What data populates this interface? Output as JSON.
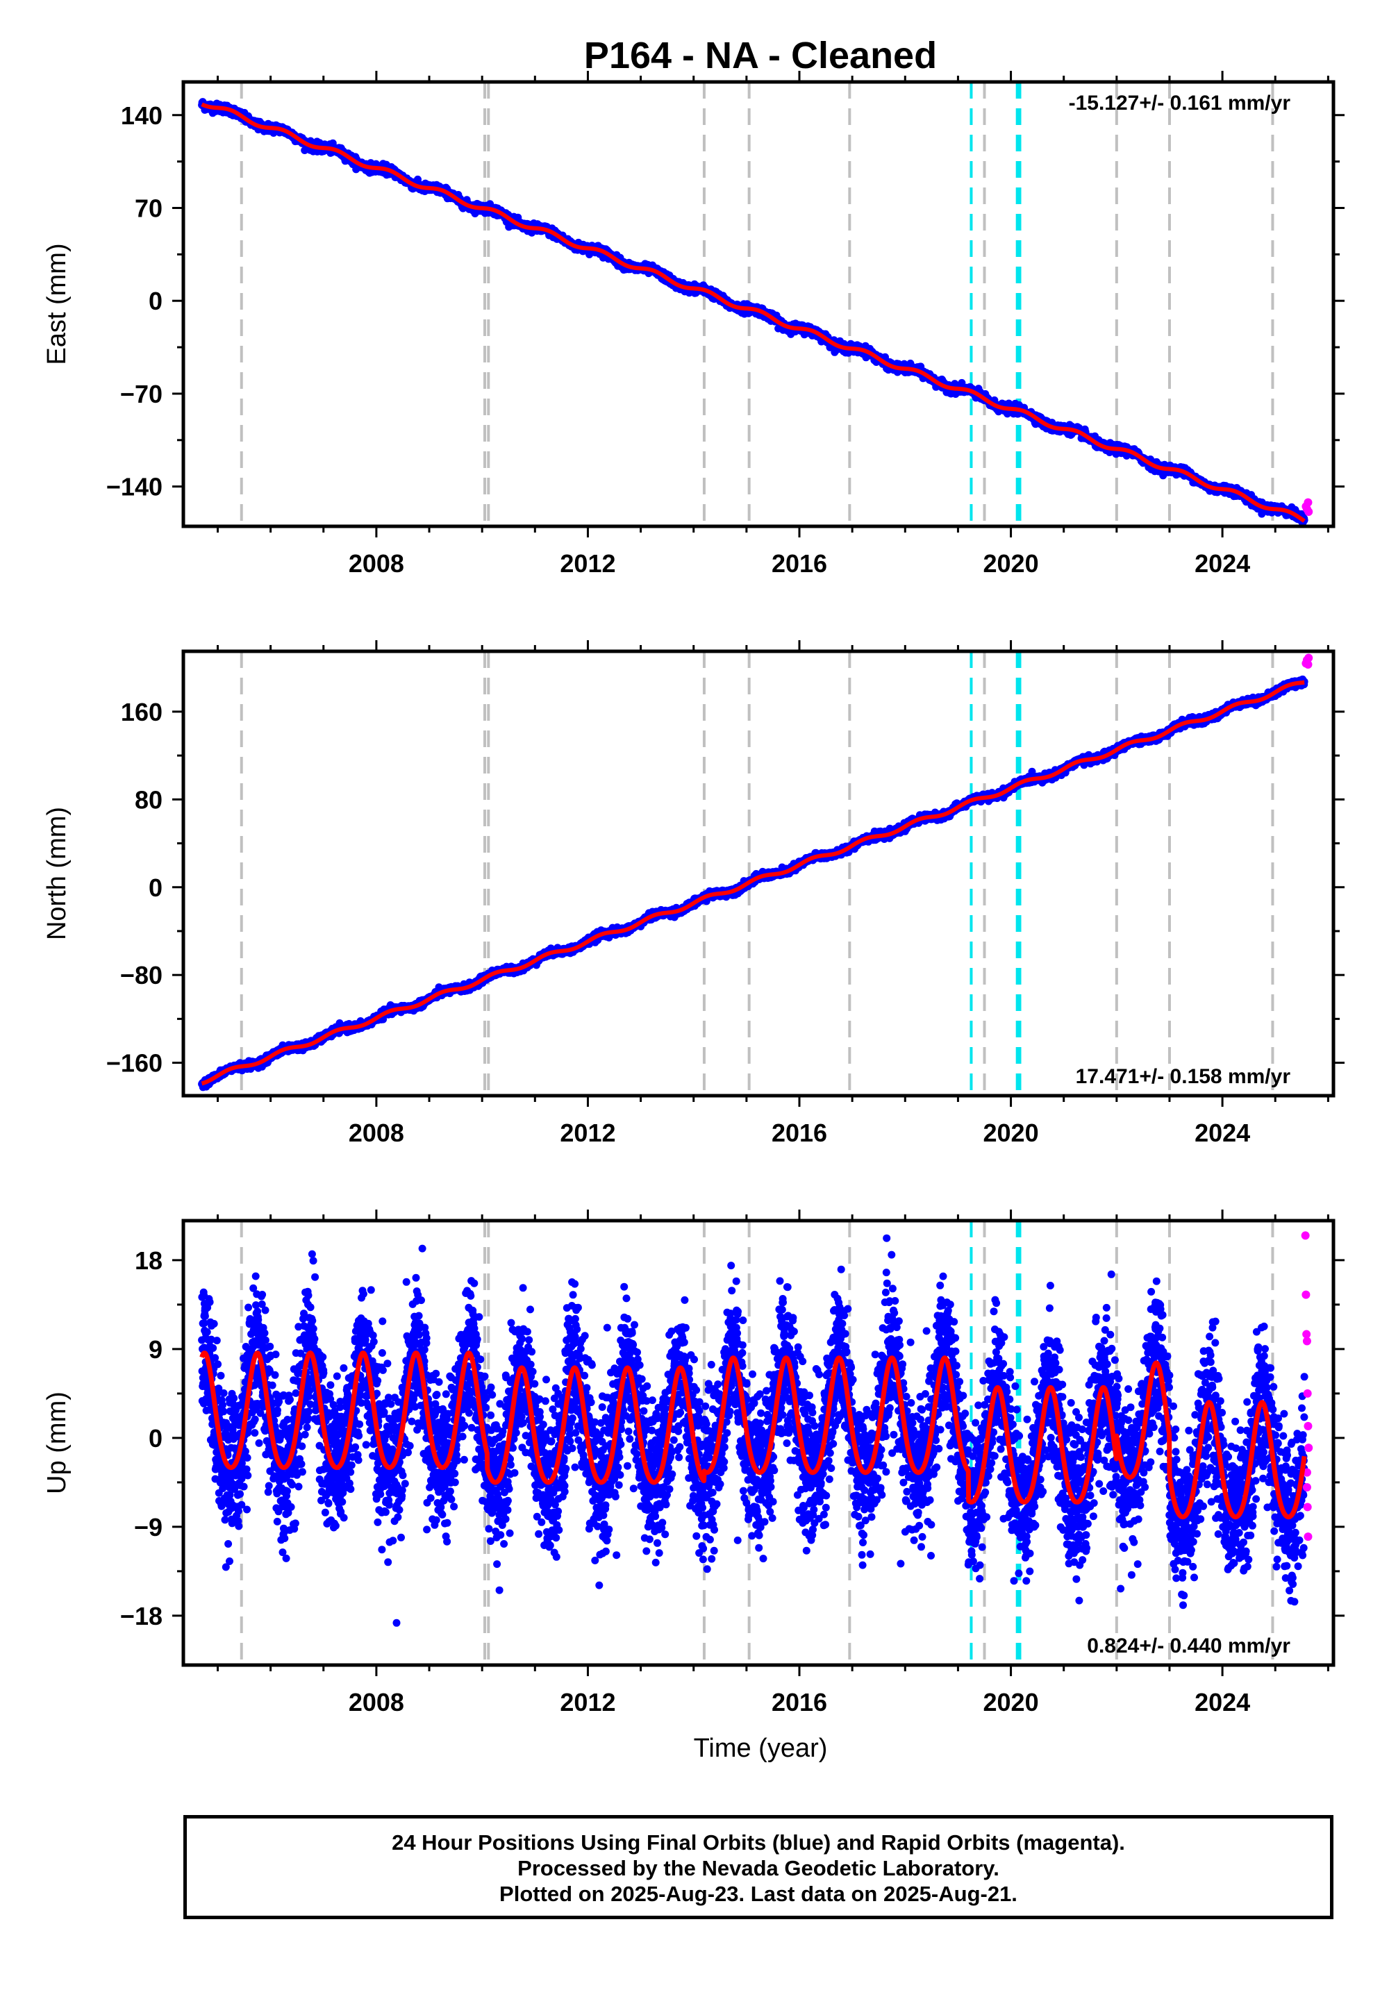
{
  "title": "P164  - NA - Cleaned",
  "xlabel": "Time (year)",
  "footer": {
    "line1": "24 Hour Positions Using Final Orbits (blue) and Rapid Orbits (magenta).",
    "line2": "Processed by the Nevada Geodetic Laboratory.",
    "line3": "Plotted on 2025-Aug-23. Last data on 2025-Aug-21."
  },
  "colors": {
    "final": "#0000ff",
    "rapid": "#ff00ff",
    "model": "#ff0000",
    "equipment_change": "#c0c0c0",
    "earthquake": "#00e5ee"
  },
  "chart_data": [
    {
      "type": "scatter",
      "panel": "east",
      "ylabel": "East (mm)",
      "xlim": [
        2004.35,
        2026.1
      ],
      "ylim": [
        -170,
        165
      ],
      "yticks": [
        140,
        70,
        0,
        -70,
        -140
      ],
      "xticks": [
        2008,
        2012,
        2016,
        2020,
        2024
      ],
      "rate_label": "-15.127+/- 0.161 mm/yr",
      "series": [
        {
          "name": "Final Orbits",
          "start": [
            2004.7,
            150
          ],
          "end": [
            2025.55,
            -153
          ],
          "points_daily": true
        },
        {
          "name": "Rapid Orbits",
          "x": [
            2025.58,
            2025.6,
            2025.62,
            2025.63
          ],
          "y": [
            -155,
            -157,
            -152,
            -159
          ]
        }
      ],
      "model": {
        "rate": -15.127,
        "intercept_at_2004.7": 150,
        "annual_amp": 2
      }
    },
    {
      "type": "scatter",
      "panel": "north",
      "ylabel": "North (mm)",
      "xlim": [
        2004.35,
        2026.1
      ],
      "ylim": [
        -190,
        215
      ],
      "yticks": [
        160,
        80,
        0,
        -80,
        -160
      ],
      "xticks": [
        2008,
        2012,
        2016,
        2020,
        2024
      ],
      "rate_label": "17.471+/- 0.158 mm/yr",
      "series": [
        {
          "name": "Final Orbits",
          "start": [
            2004.7,
            -177
          ],
          "end": [
            2025.55,
            203
          ],
          "points_daily": true
        },
        {
          "name": "Rapid Orbits",
          "x": [
            2025.58,
            2025.6,
            2025.62,
            2025.63
          ],
          "y": [
            204,
            207,
            203,
            209
          ]
        }
      ],
      "model": {
        "rate": 17.471,
        "intercept_at_2004.7": -177,
        "annual_amp": 2
      }
    },
    {
      "type": "scatter",
      "panel": "up",
      "ylabel": "Up (mm)",
      "xlim": [
        2004.35,
        2026.1
      ],
      "ylim": [
        -23,
        22
      ],
      "yticks": [
        18,
        9,
        0,
        -9,
        -18
      ],
      "xticks": [
        2008,
        2012,
        2016,
        2020,
        2024
      ],
      "rate_label": "0.824+/- 0.440 mm/yr",
      "series": [
        {
          "name": "Final Orbits",
          "start": [
            2004.7,
            2
          ],
          "end": [
            2025.55,
            -2
          ],
          "scatter_sd": 3.6,
          "points_daily": true
        },
        {
          "name": "Rapid Orbits",
          "x": [
            2025.57,
            2025.58,
            2025.59,
            2025.6,
            2025.61,
            2025.62,
            2025.63,
            2025.6,
            2025.6,
            2025.61,
            2025.62
          ],
          "y": [
            20.5,
            14.5,
            10.5,
            9.8,
            4.5,
            1.2,
            -1.0,
            -3.5,
            -5.0,
            -7.0,
            -10.0
          ]
        }
      ],
      "model": {
        "rate": 0.824,
        "annual_amp": 5.8,
        "annual_phase_peak": 0.75,
        "segment_offsets": [
          [
            2004.7,
            2
          ],
          [
            2010.1,
            0.5
          ],
          [
            2014.2,
            1.5
          ],
          [
            2019.2,
            -1.5
          ],
          [
            2022.0,
            1
          ],
          [
            2023.0,
            -3
          ]
        ]
      }
    }
  ],
  "equipment_change_years": [
    2005.45,
    2010.05,
    2010.12,
    2014.2,
    2015.05,
    2016.95,
    2019.5,
    2022.0,
    2023.0,
    2024.95
  ],
  "earthquake_years": [
    2019.25,
    2020.12,
    2020.17
  ]
}
